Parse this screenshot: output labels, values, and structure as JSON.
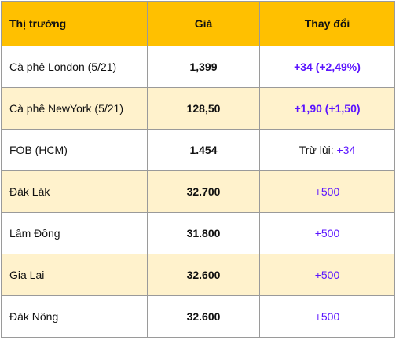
{
  "headers": {
    "market": "Thị trường",
    "price": "Giá",
    "change": "Thay đổi"
  },
  "rows": [
    {
      "market": "Cà phê London (5/21)",
      "price": "1,399",
      "change_prefix": "",
      "change": "+34 (+2,49%)"
    },
    {
      "market": "Cà phê NewYork (5/21)",
      "price": "128,50",
      "change_prefix": "",
      "change": "+1,90 (+1,50)"
    },
    {
      "market": "FOB (HCM)",
      "price": "1.454",
      "change_prefix": "Trừ lùi: ",
      "change": "+34"
    },
    {
      "market": "Đăk Lăk",
      "price": "32.700",
      "change_prefix": "",
      "change": "+500"
    },
    {
      "market": "Lâm Đồng",
      "price": "31.800",
      "change_prefix": "",
      "change": "+500"
    },
    {
      "market": "Gia Lai",
      "price": "32.600",
      "change_prefix": "",
      "change": "+500"
    },
    {
      "market": "Đăk Nông",
      "price": "32.600",
      "change_prefix": "",
      "change": "+500"
    }
  ],
  "colors": {
    "header_bg": "#ffc000",
    "shaded_row_bg": "#fff2cc",
    "change_text": "#5b14ff",
    "border": "#9a9a9a"
  }
}
